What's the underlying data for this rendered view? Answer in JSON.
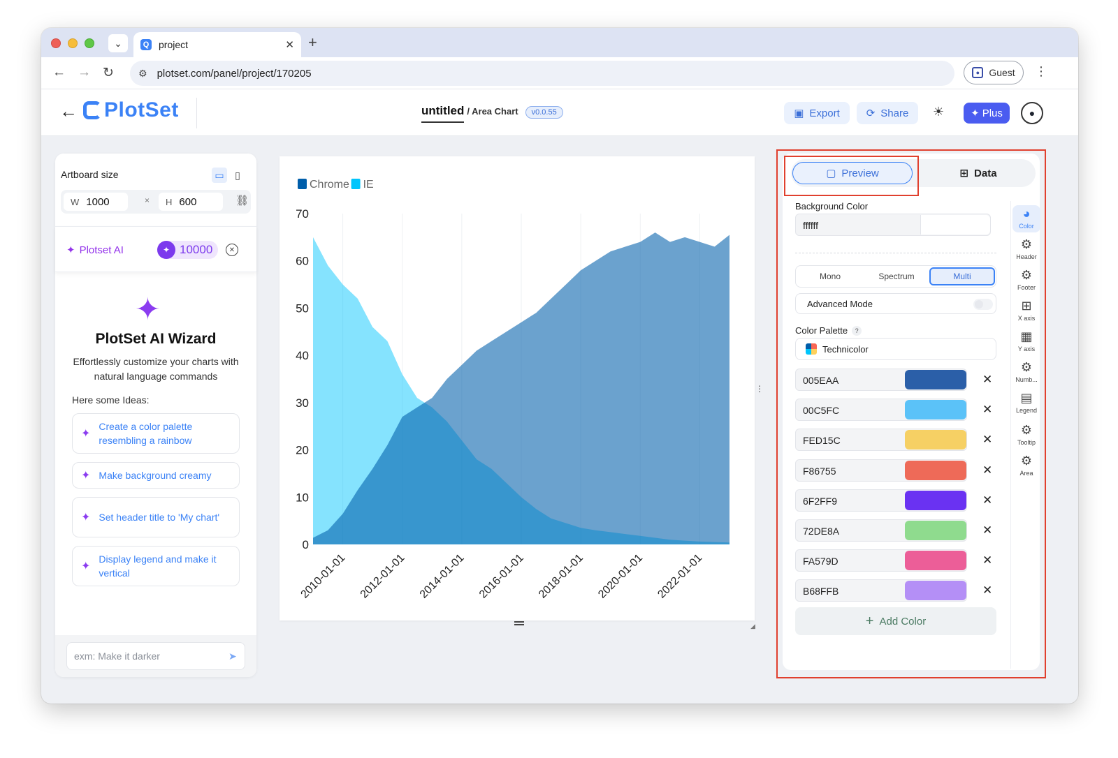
{
  "browser": {
    "tab_title": "project",
    "url": "plotset.com/panel/project/170205",
    "guest_label": "Guest"
  },
  "header": {
    "logo": "PlotSet",
    "project_name": "untitled",
    "project_type": "/ Area Chart",
    "version": "v0.0.55",
    "export_label": "Export",
    "share_label": "Share",
    "plus_label": "Plus"
  },
  "left": {
    "artboard_label": "Artboard size",
    "width_label": "W",
    "width_value": "1000",
    "times": "×",
    "height_label": "H",
    "height_value": "600",
    "ai_label": "Plotset AI",
    "credits": "10000",
    "wizard_title": "PlotSet AI Wizard",
    "wizard_desc": "Effortlessly customize your charts with natural language commands",
    "ideas_label": "Here some Ideas:",
    "ideas": [
      "Create a color palette resembling a rainbow",
      "Make background creamy",
      "Set header title to 'My chart'",
      "Display legend and make it vertical"
    ],
    "prompt_placeholder": "exm: Make it darker"
  },
  "chart_data": {
    "type": "area",
    "title": "",
    "xlabel": "",
    "ylabel": "",
    "ylim": [
      0,
      70
    ],
    "yticks": [
      0,
      10,
      20,
      30,
      40,
      50,
      60,
      70
    ],
    "xticks": [
      "2010-01-01",
      "2012-01-01",
      "2014-01-01",
      "2016-01-01",
      "2018-01-01",
      "2020-01-01",
      "2022-01-01"
    ],
    "x_range": [
      "2009-01",
      "2023-01"
    ],
    "stacked": false,
    "grid": "vertical",
    "legend": "top-left",
    "x": [
      "2009-01",
      "2009-07",
      "2010-01",
      "2010-07",
      "2011-01",
      "2011-07",
      "2012-01",
      "2012-07",
      "2013-01",
      "2013-07",
      "2014-01",
      "2014-07",
      "2015-01",
      "2015-07",
      "2016-01",
      "2016-07",
      "2017-01",
      "2017-07",
      "2018-01",
      "2018-07",
      "2019-01",
      "2019-07",
      "2020-01",
      "2020-07",
      "2021-01",
      "2021-07",
      "2022-01",
      "2022-07",
      "2023-01"
    ],
    "series": [
      {
        "name": "Chrome",
        "color": "#005EAA",
        "values": [
          1.4,
          3.0,
          6.5,
          11.5,
          16.0,
          21.0,
          27.0,
          29.0,
          31.0,
          35.0,
          38.0,
          41.0,
          43.0,
          45.0,
          47.0,
          49.0,
          52.0,
          55.0,
          58.0,
          60.0,
          62.0,
          63.0,
          64.0,
          66.0,
          64.0,
          65.0,
          64.0,
          63.0,
          65.5
        ]
      },
      {
        "name": "IE",
        "color": "#00C5FC",
        "values": [
          65.0,
          59.0,
          55.0,
          52.0,
          46.0,
          43.0,
          36.0,
          31.0,
          29.0,
          26.0,
          22.0,
          18.0,
          16.0,
          13.0,
          10.0,
          7.5,
          5.5,
          4.5,
          3.5,
          3.0,
          2.6,
          2.2,
          1.8,
          1.4,
          1.0,
          0.8,
          0.6,
          0.5,
          0.4
        ]
      }
    ]
  },
  "right": {
    "tab_preview": "Preview",
    "tab_data": "Data",
    "bg_label": "Background Color",
    "bg_value": "ffffff",
    "modes": [
      "Mono",
      "Spectrum",
      "Multi"
    ],
    "advanced_label": "Advanced Mode",
    "palette_label": "Color Palette",
    "palette_help": "?",
    "palette_value": "Technicolor",
    "colors": [
      {
        "hex": "005EAA",
        "color": "#2B5FA8"
      },
      {
        "hex": "00C5FC",
        "color": "#5BC2F8"
      },
      {
        "hex": "FED15C",
        "color": "#F6D064"
      },
      {
        "hex": "F86755",
        "color": "#EE6A58"
      },
      {
        "hex": "6F2FF9",
        "color": "#6A32F2"
      },
      {
        "hex": "72DE8A",
        "color": "#8FDB8E"
      },
      {
        "hex": "FA579D",
        "color": "#EC5E98"
      },
      {
        "hex": "B68FFB",
        "color": "#B48FF6"
      }
    ],
    "add_color_label": "Add Color",
    "sidebar": [
      "Color",
      "Header",
      "Footer",
      "X axis",
      "Y axis",
      "Numb...",
      "Legend",
      "Tooltip",
      "Area"
    ]
  }
}
